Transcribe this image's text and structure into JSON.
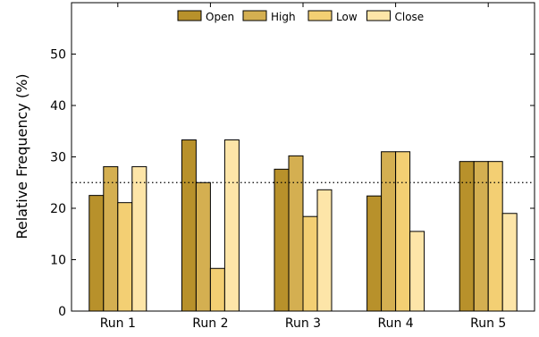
{
  "chart_data": {
    "type": "bar",
    "title": "",
    "xlabel": "",
    "ylabel": "Relative Frequency (%)",
    "ylim": [
      0,
      60
    ],
    "yticks": [
      0,
      10,
      20,
      30,
      40,
      50
    ],
    "grid": false,
    "legend_position": "top-center",
    "categories": [
      "Run 1",
      "Run 2",
      "Run 3",
      "Run 4",
      "Run 5"
    ],
    "series": [
      {
        "name": "Open",
        "color": "#b8912b",
        "values": [
          22.5,
          33.3,
          27.6,
          22.4,
          29.1
        ]
      },
      {
        "name": "High",
        "color": "#d4af51",
        "values": [
          28.1,
          25.0,
          30.2,
          31.0,
          29.1
        ]
      },
      {
        "name": "Low",
        "color": "#f3cf73",
        "values": [
          21.1,
          8.3,
          18.4,
          31.0,
          29.1
        ]
      },
      {
        "name": "Close",
        "color": "#fde5a8",
        "values": [
          28.1,
          33.3,
          23.6,
          15.5,
          19.0
        ]
      }
    ],
    "reference_line": {
      "value": 25,
      "style": "dotted"
    }
  }
}
